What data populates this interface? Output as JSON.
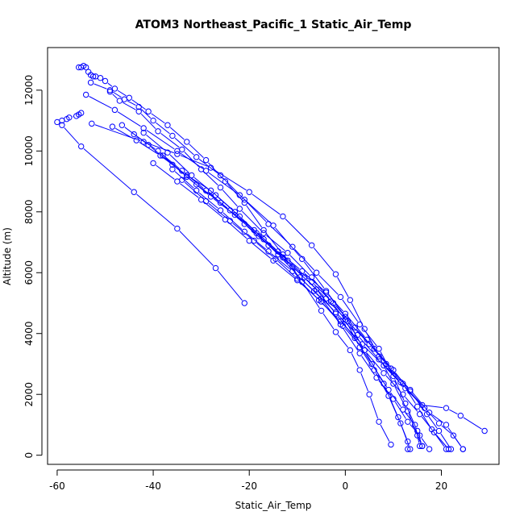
{
  "chart_data": {
    "type": "line",
    "title": "ATOM3 Northeast_Pacific_1 Static_Air_Temp",
    "xlabel": "Static_Air_Temp",
    "ylabel": "Altitude (m)",
    "xlim": [
      -62,
      32
    ],
    "ylim": [
      -300,
      13400
    ],
    "x_ticks": [
      -60,
      -40,
      -20,
      0,
      20
    ],
    "y_ticks": [
      0,
      2000,
      4000,
      6000,
      8000,
      10000,
      12000
    ],
    "grid": false,
    "marker": "open-circle",
    "color": "#0000ff",
    "series": [
      {
        "points": [
          [
            -21,
            5000
          ],
          [
            -27,
            6150
          ],
          [
            -35,
            7450
          ],
          [
            -44,
            8650
          ],
          [
            -55,
            10150
          ],
          [
            -59,
            10850
          ],
          [
            -60,
            10950
          ],
          [
            -59,
            11000
          ],
          [
            -58,
            11050
          ],
          [
            -57.5,
            11100
          ],
          [
            -56,
            11150
          ],
          [
            -55.5,
            11200
          ],
          [
            -55,
            11250
          ]
        ]
      },
      {
        "points": [
          [
            -52.8,
            10900
          ],
          [
            -42,
            10300
          ],
          [
            -35,
            9900
          ],
          [
            -28,
            9450
          ],
          [
            -20,
            8650
          ],
          [
            -13,
            7850
          ],
          [
            -7,
            6900
          ],
          [
            -2,
            5950
          ],
          [
            1,
            5100
          ],
          [
            4,
            4150
          ],
          [
            7,
            3250
          ],
          [
            10,
            2350
          ],
          [
            13,
            1450
          ],
          [
            15,
            650
          ],
          [
            16,
            300
          ]
        ]
      },
      {
        "points": [
          [
            -54,
            11850
          ],
          [
            -48,
            11350
          ],
          [
            -42,
            10750
          ],
          [
            -35,
            10000
          ],
          [
            -29,
            9350
          ],
          [
            -22,
            8550
          ],
          [
            -15,
            7550
          ],
          [
            -9,
            6450
          ],
          [
            -4,
            5400
          ],
          [
            0,
            4550
          ],
          [
            4,
            3450
          ],
          [
            8,
            2350
          ],
          [
            11,
            1250
          ],
          [
            13,
            450
          ],
          [
            13,
            200
          ]
        ]
      },
      {
        "points": [
          [
            -55.5,
            12750
          ],
          [
            -55,
            12750
          ],
          [
            -54.5,
            12800
          ],
          [
            -54,
            12750
          ],
          [
            -53.5,
            12600
          ],
          [
            -53,
            12500
          ],
          [
            -52.5,
            12450
          ],
          [
            -52,
            12450
          ],
          [
            -51,
            12400
          ],
          [
            -50,
            12300
          ],
          [
            -48,
            12050
          ],
          [
            -45,
            11750
          ],
          [
            -41,
            11300
          ],
          [
            -37,
            10850
          ],
          [
            -33,
            10300
          ],
          [
            -29,
            9700
          ],
          [
            -25,
            9000
          ],
          [
            -21,
            8300
          ],
          [
            -17,
            7400
          ],
          [
            -13,
            6600
          ],
          [
            -9,
            5700
          ],
          [
            -5,
            4750
          ],
          [
            -2,
            4050
          ],
          [
            1,
            3450
          ],
          [
            3,
            2800
          ],
          [
            5,
            2000
          ],
          [
            7,
            1100
          ],
          [
            9.5,
            350
          ]
        ]
      },
      {
        "points": [
          [
            -53,
            12250
          ],
          [
            -49,
            12000
          ],
          [
            -46,
            11700
          ],
          [
            -43,
            11450
          ],
          [
            -40,
            11000
          ],
          [
            -36,
            10500
          ],
          [
            -31,
            9800
          ],
          [
            -26,
            9200
          ],
          [
            -21,
            8400
          ],
          [
            -16,
            7600
          ],
          [
            -11,
            6850
          ],
          [
            -6,
            6000
          ],
          [
            -1,
            5200
          ],
          [
            3,
            4300
          ],
          [
            7,
            3500
          ],
          [
            10,
            2600
          ],
          [
            12.5,
            1700
          ],
          [
            15,
            800
          ],
          [
            16,
            300
          ]
        ]
      },
      {
        "points": [
          [
            -49,
            11950
          ],
          [
            -47,
            11650
          ],
          [
            -43,
            11300
          ],
          [
            -39,
            10650
          ],
          [
            -34,
            10050
          ],
          [
            -30,
            9400
          ],
          [
            -26,
            8800
          ],
          [
            -22,
            8100
          ],
          [
            -17,
            7300
          ],
          [
            -12,
            6650
          ],
          [
            -7,
            5850
          ],
          [
            -3,
            5050
          ],
          [
            0,
            4450
          ],
          [
            3,
            3550
          ],
          [
            6,
            2800
          ],
          [
            9,
            1950
          ],
          [
            11.5,
            1050
          ],
          [
            13.5,
            200
          ]
        ]
      },
      {
        "points": [
          [
            -48.5,
            10800
          ],
          [
            -43.5,
            10350
          ],
          [
            -38.5,
            9850
          ],
          [
            -33,
            9200
          ],
          [
            -28,
            8700
          ],
          [
            -23,
            8000
          ],
          [
            -18.5,
            7300
          ],
          [
            -14,
            6600
          ],
          [
            -9.5,
            5850
          ],
          [
            -5,
            5150
          ],
          [
            -1,
            4300
          ],
          [
            3,
            3350
          ],
          [
            6.5,
            2550
          ],
          [
            10,
            1850
          ],
          [
            13,
            1100
          ],
          [
            15.5,
            650
          ],
          [
            17.5,
            200
          ]
        ]
      },
      {
        "points": [
          [
            -46.5,
            10850
          ],
          [
            -41,
            10200
          ],
          [
            -36,
            9550
          ],
          [
            -31,
            8900
          ],
          [
            -26,
            8300
          ],
          [
            -21,
            7600
          ],
          [
            -16,
            6900
          ],
          [
            -11,
            6200
          ],
          [
            -6,
            5450
          ],
          [
            -2,
            4650
          ],
          [
            2,
            3850
          ],
          [
            5.5,
            3000
          ],
          [
            9,
            2150
          ],
          [
            12,
            1500
          ],
          [
            14.5,
            1000
          ],
          [
            15.5,
            300
          ]
        ]
      },
      {
        "points": [
          [
            -44,
            10550
          ],
          [
            -39,
            10000
          ],
          [
            -34,
            9350
          ],
          [
            -29,
            8700
          ],
          [
            -24,
            8050
          ],
          [
            -19,
            7400
          ],
          [
            -14,
            6700
          ],
          [
            -9,
            6050
          ],
          [
            -4,
            5350
          ],
          [
            0,
            4650
          ],
          [
            4.5,
            3800
          ],
          [
            8.5,
            3000
          ],
          [
            12,
            2350
          ],
          [
            15,
            1600
          ],
          [
            18,
            850
          ],
          [
            21,
            200
          ]
        ]
      },
      {
        "points": [
          [
            -42,
            10600
          ],
          [
            -37,
            9950
          ],
          [
            -32,
            9200
          ],
          [
            -27,
            8550
          ],
          [
            -22,
            7850
          ],
          [
            -17,
            7100
          ],
          [
            -12,
            6400
          ],
          [
            -7,
            5700
          ],
          [
            -2.5,
            5000
          ],
          [
            2,
            4200
          ],
          [
            6,
            3500
          ],
          [
            10,
            2800
          ],
          [
            13.5,
            2100
          ],
          [
            17,
            1350
          ],
          [
            19.5,
            800
          ],
          [
            22,
            200
          ]
        ]
      },
      {
        "points": [
          [
            -40,
            9600
          ],
          [
            -35,
            9000
          ],
          [
            -30,
            8400
          ],
          [
            -25,
            7750
          ],
          [
            -20,
            7050
          ],
          [
            -15,
            6400
          ],
          [
            -10,
            5750
          ],
          [
            -5,
            5050
          ],
          [
            -0.5,
            4250
          ],
          [
            4,
            3450
          ],
          [
            8,
            2700
          ],
          [
            12,
            2000
          ],
          [
            15.5,
            1350
          ],
          [
            18.5,
            750
          ],
          [
            21.5,
            200
          ]
        ]
      },
      {
        "points": [
          [
            -38,
            9850
          ],
          [
            -33,
            9150
          ],
          [
            -28,
            8500
          ],
          [
            -23,
            7900
          ],
          [
            -18,
            7200
          ],
          [
            -13,
            6500
          ],
          [
            -8.5,
            5850
          ],
          [
            -4,
            5150
          ],
          [
            0.5,
            4400
          ],
          [
            5,
            3650
          ],
          [
            9.5,
            2850
          ],
          [
            13.5,
            2150
          ],
          [
            17.5,
            1400
          ],
          [
            21,
            1000
          ],
          [
            24.5,
            200
          ]
        ]
      },
      {
        "points": [
          [
            -36,
            9400
          ],
          [
            -31,
            8700
          ],
          [
            -26,
            8050
          ],
          [
            -21,
            7350
          ],
          [
            -16,
            6700
          ],
          [
            -11,
            6050
          ],
          [
            -6.5,
            5400
          ],
          [
            -2,
            4700
          ],
          [
            2.5,
            3950
          ],
          [
            7,
            3150
          ],
          [
            11.5,
            2400
          ],
          [
            16,
            1650
          ],
          [
            21,
            1550
          ],
          [
            24,
            1300
          ],
          [
            29,
            800
          ]
        ]
      },
      {
        "points": [
          [
            -34,
            9050
          ],
          [
            -29,
            8350
          ],
          [
            -24,
            7700
          ],
          [
            -19,
            7050
          ],
          [
            -14.5,
            6450
          ],
          [
            -10,
            5800
          ],
          [
            -5.5,
            5100
          ],
          [
            -1,
            4400
          ],
          [
            3.5,
            3650
          ],
          [
            8,
            2950
          ],
          [
            12.5,
            2200
          ],
          [
            16.5,
            1550
          ],
          [
            19.5,
            1050
          ],
          [
            22.5,
            650
          ],
          [
            24.5,
            200
          ]
        ]
      }
    ]
  }
}
